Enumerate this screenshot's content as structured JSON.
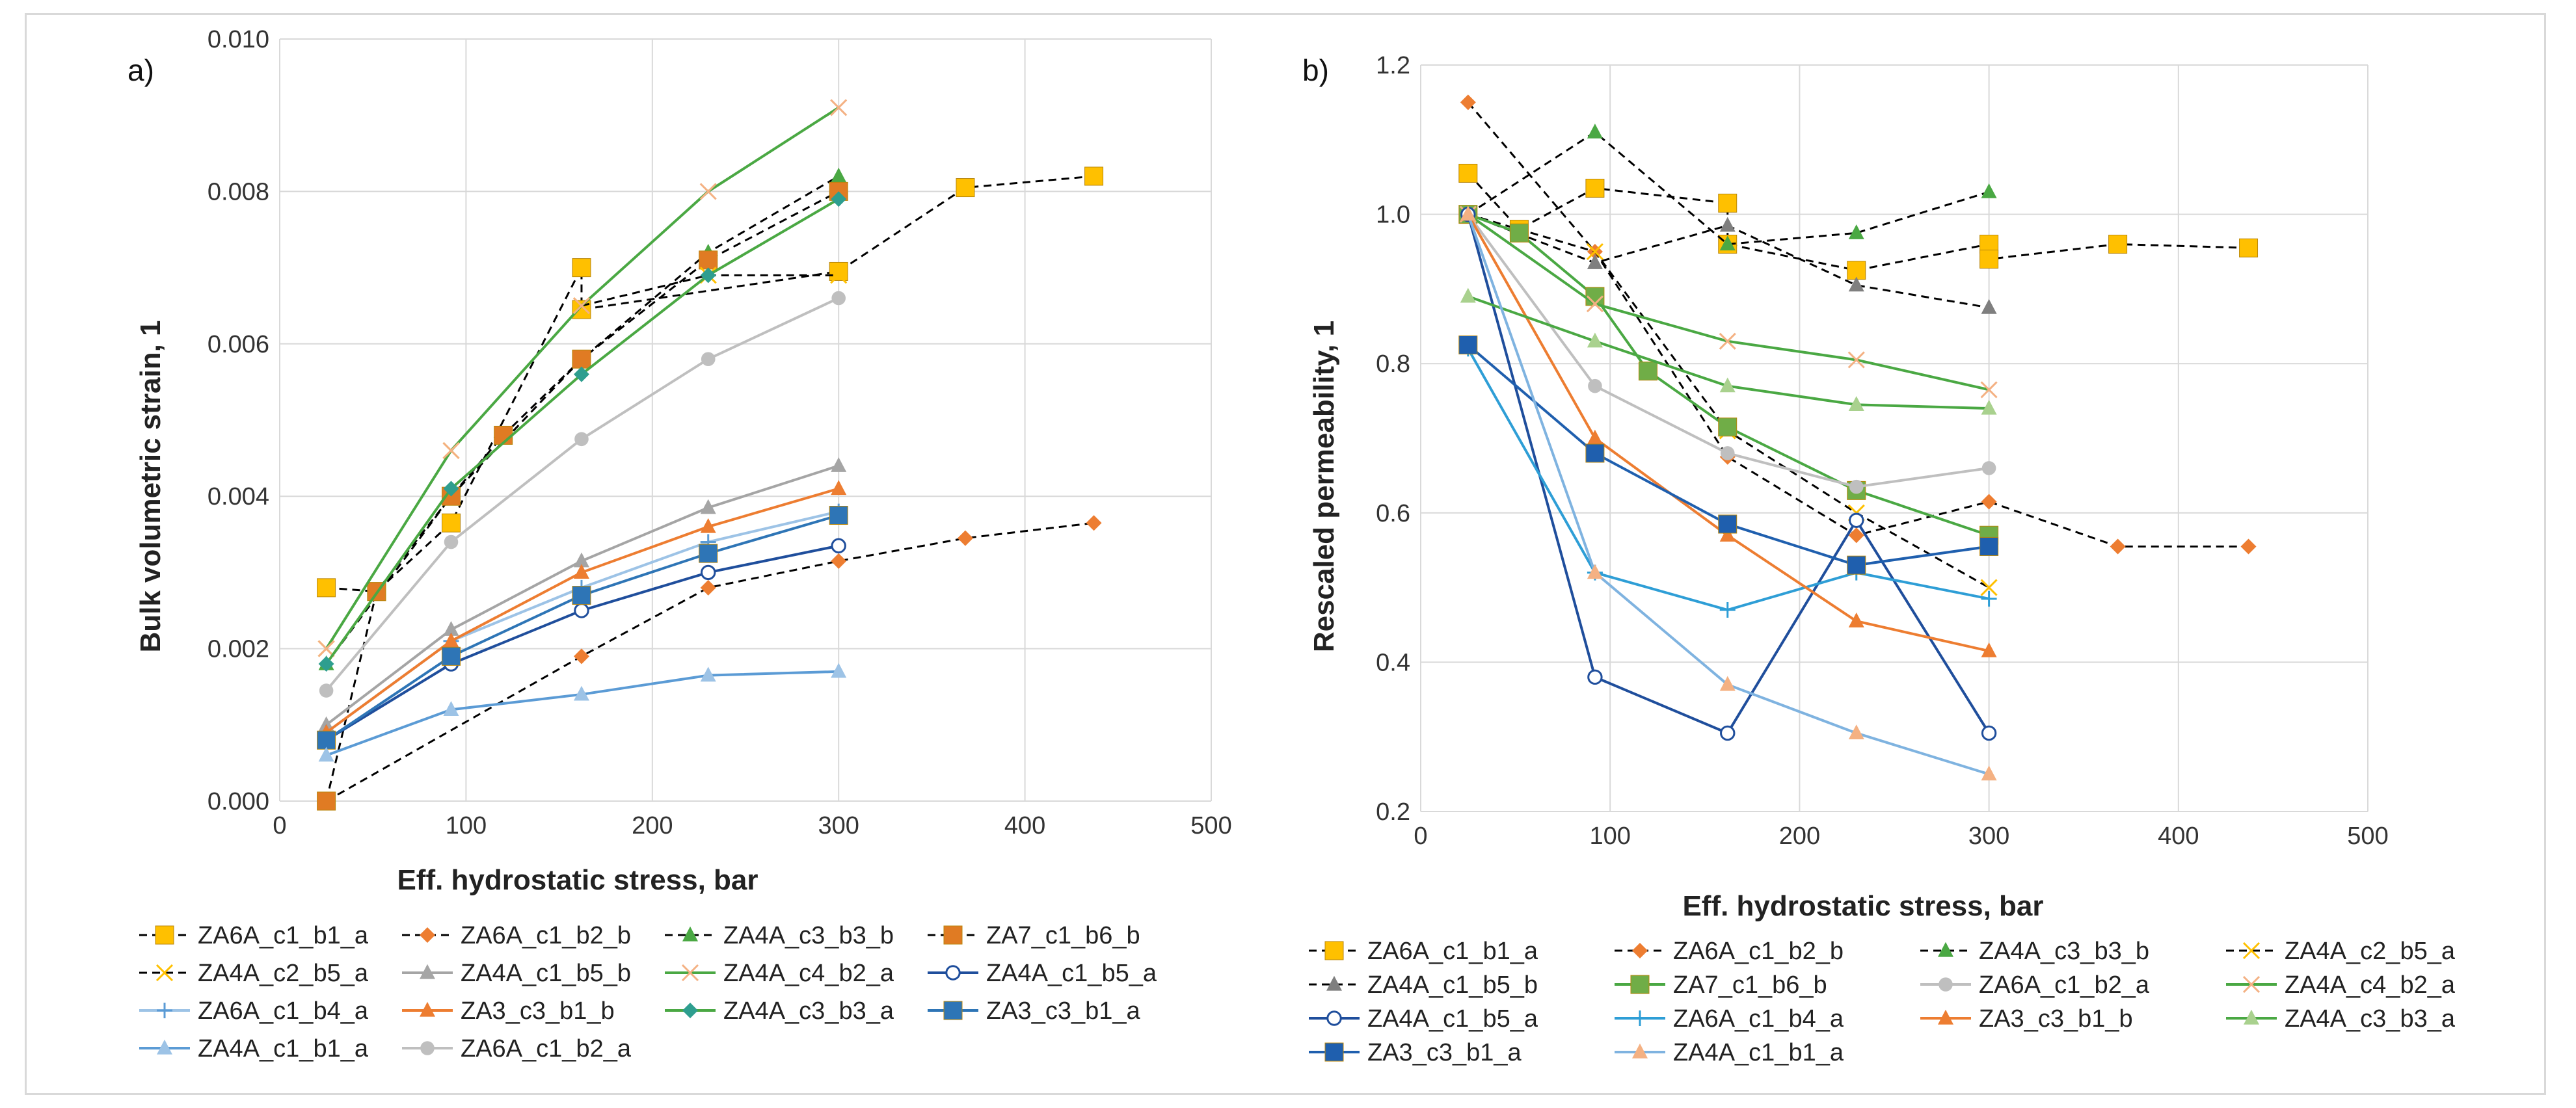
{
  "chart_data": [
    {
      "type": "line",
      "panel_label": "a)",
      "xlabel": "Eff. hydrostatic stress, bar",
      "ylabel": "Bulk volumetric strain, 1",
      "xlim": [
        0,
        500
      ],
      "ylim": [
        0,
        0.01
      ],
      "xticks": [
        "0",
        "100",
        "200",
        "300",
        "400",
        "500"
      ],
      "yticks": [
        "0.000",
        "0.002",
        "0.004",
        "0.006",
        "0.008",
        "0.010"
      ],
      "grid": true,
      "legend_position": "bottom",
      "series": [
        {
          "name": "ZA6A_c1_b1_a",
          "color": "#000000",
          "dash": true,
          "marker": "square",
          "marker_color": "#ffc000",
          "x": [
            25,
            52,
            92,
            162,
            162,
            300,
            368,
            437
          ],
          "y": [
            0.0028,
            0.00275,
            0.00365,
            0.007,
            0.00645,
            0.00695,
            0.00805,
            0.0082
          ]
        },
        {
          "name": "ZA6A_c1_b2_b",
          "color": "#000000",
          "dash": true,
          "marker": "diamond",
          "marker_color": "#ed7d31",
          "x": [
            25,
            162,
            230,
            300,
            368,
            437
          ],
          "y": [
            0.0,
            0.0019,
            0.0028,
            0.00315,
            0.00345,
            0.00365
          ]
        },
        {
          "name": "ZA4A_c3_b3_b",
          "color": "#000000",
          "dash": true,
          "marker": "triangle",
          "marker_color": "#4aa843",
          "x": [
            25,
            92,
            162,
            230,
            300
          ],
          "y": [
            0.0018,
            0.004,
            0.0058,
            0.0072,
            0.0082
          ]
        },
        {
          "name": "ZA7_c1_b6_b",
          "color": "#000000",
          "dash": true,
          "marker": "square",
          "marker_color": "#e07b23",
          "x": [
            25,
            52,
            92,
            120,
            162,
            230,
            300
          ],
          "y": [
            0.0,
            0.00275,
            0.004,
            0.0048,
            0.0058,
            0.0071,
            0.008
          ]
        },
        {
          "name": "ZA4A_c2_b5_a",
          "color": "#000000",
          "dash": true,
          "marker": "xcross",
          "marker_color": "#ffc000",
          "x": [
            25,
            92,
            162,
            230,
            300
          ],
          "y": [
            0.002,
            0.0046,
            0.0065,
            0.0069,
            0.0069
          ]
        },
        {
          "name": "ZA4A_c1_b5_b",
          "color": "#a5a5a5",
          "dash": false,
          "marker": "triangle",
          "marker_color": "#a5a5a5",
          "x": [
            25,
            92,
            162,
            230,
            300
          ],
          "y": [
            0.001,
            0.00225,
            0.00315,
            0.00385,
            0.0044
          ]
        },
        {
          "name": "ZA4A_c4_b2_a",
          "color": "#4aa843",
          "dash": false,
          "marker": "xcross",
          "marker_color": "#f4b183",
          "x": [
            25,
            92,
            162,
            230,
            300
          ],
          "y": [
            0.002,
            0.0046,
            0.0065,
            0.008,
            0.0091
          ]
        },
        {
          "name": "ZA4A_c1_b5_a",
          "color": "#1f4e9c",
          "dash": false,
          "marker": "circle-open",
          "marker_color": "#1f4e9c",
          "x": [
            25,
            92,
            162,
            230,
            300
          ],
          "y": [
            0.0008,
            0.0018,
            0.0025,
            0.003,
            0.00335
          ]
        },
        {
          "name": "ZA6A_c1_b4_a",
          "color": "#9dc3e6",
          "dash": false,
          "marker": "plus",
          "marker_color": "#5b9bd5",
          "x": [
            25,
            92,
            162,
            230,
            300
          ],
          "y": [
            0.0009,
            0.0021,
            0.0028,
            0.0034,
            0.0038
          ]
        },
        {
          "name": "ZA3_c3_b1_b",
          "color": "#ed7d31",
          "dash": false,
          "marker": "triangle",
          "marker_color": "#ed7d31",
          "x": [
            25,
            92,
            162,
            230,
            300
          ],
          "y": [
            0.0009,
            0.0021,
            0.003,
            0.0036,
            0.0041
          ]
        },
        {
          "name": "ZA4A_c3_b3_a",
          "color": "#4aa843",
          "dash": false,
          "marker": "diamond",
          "marker_color": "#2e9e8f",
          "x": [
            25,
            92,
            162,
            230,
            300
          ],
          "y": [
            0.0018,
            0.0041,
            0.0056,
            0.0069,
            0.0079
          ]
        },
        {
          "name": "ZA3_c3_b1_a",
          "color": "#2e75b6",
          "dash": false,
          "marker": "square",
          "marker_color": "#2e75b6",
          "x": [
            25,
            92,
            162,
            230,
            300
          ],
          "y": [
            0.0008,
            0.0019,
            0.0027,
            0.00325,
            0.00375
          ]
        },
        {
          "name": "ZA4A_c1_b1_a",
          "color": "#5b9bd5",
          "dash": false,
          "marker": "triangle",
          "marker_color": "#9dc3e6",
          "x": [
            25,
            92,
            162,
            230,
            300
          ],
          "y": [
            0.0006,
            0.0012,
            0.0014,
            0.00165,
            0.0017
          ]
        },
        {
          "name": "ZA6A_c1_b2_a",
          "color": "#bfbfbf",
          "dash": false,
          "marker": "circle",
          "marker_color": "#bfbfbf",
          "x": [
            25,
            92,
            162,
            230,
            300
          ],
          "y": [
            0.00145,
            0.0034,
            0.00475,
            0.0058,
            0.0066
          ]
        }
      ]
    },
    {
      "type": "line",
      "panel_label": "b)",
      "xlabel": "Eff. hydrostatic stress, bar",
      "ylabel": "Rescaled permeability, 1",
      "xlim": [
        0,
        500
      ],
      "ylim": [
        0.2,
        1.2
      ],
      "xticks": [
        "0",
        "100",
        "200",
        "300",
        "400",
        "500"
      ],
      "yticks": [
        "0.2",
        "0.4",
        "0.6",
        "0.8",
        "1.0",
        "1.2"
      ],
      "grid": true,
      "legend_position": "bottom",
      "series": [
        {
          "name": "ZA6A_c1_b1_a",
          "color": "#000000",
          "dash": true,
          "marker": "square",
          "marker_color": "#ffc000",
          "x": [
            25,
            52,
            92,
            162,
            162,
            230,
            300,
            300,
            368,
            437
          ],
          "y": [
            1.055,
            0.98,
            1.035,
            1.015,
            0.96,
            0.925,
            0.96,
            0.94,
            0.96,
            0.955
          ]
        },
        {
          "name": "ZA6A_c1_b2_b",
          "color": "#000000",
          "dash": true,
          "marker": "diamond",
          "marker_color": "#ed7d31",
          "x": [
            25,
            92,
            162,
            230,
            300,
            368,
            437
          ],
          "y": [
            1.15,
            0.95,
            0.675,
            0.57,
            0.615,
            0.555,
            0.555
          ]
        },
        {
          "name": "ZA4A_c3_b3_b",
          "color": "#000000",
          "dash": true,
          "marker": "triangle",
          "marker_color": "#4aa843",
          "x": [
            25,
            92,
            162,
            230,
            300
          ],
          "y": [
            1.0,
            1.11,
            0.96,
            0.975,
            1.03
          ]
        },
        {
          "name": "ZA4A_c2_b5_a",
          "color": "#000000",
          "dash": true,
          "marker": "xcross",
          "marker_color": "#ffc000",
          "x": [
            25,
            92,
            162,
            230,
            300
          ],
          "y": [
            1.0,
            0.95,
            0.71,
            0.6,
            0.5
          ]
        },
        {
          "name": "ZA4A_c1_b5_b",
          "color": "#000000",
          "dash": true,
          "marker": "triangle",
          "marker_color": "#7f7f7f",
          "x": [
            25,
            92,
            162,
            230,
            300
          ],
          "y": [
            1.0,
            0.935,
            0.985,
            0.905,
            0.875
          ]
        },
        {
          "name": "ZA7_c1_b6_b",
          "color": "#4aa843",
          "dash": false,
          "marker": "square",
          "marker_color": "#70ad47",
          "x": [
            25,
            52,
            92,
            120,
            162,
            230,
            300
          ],
          "y": [
            1.0,
            0.975,
            0.89,
            0.79,
            0.715,
            0.63,
            0.57
          ]
        },
        {
          "name": "ZA6A_c1_b2_a",
          "color": "#bfbfbf",
          "dash": false,
          "marker": "circle",
          "marker_color": "#bfbfbf",
          "x": [
            25,
            92,
            162,
            230,
            300
          ],
          "y": [
            1.0,
            0.77,
            0.68,
            0.635,
            0.66
          ]
        },
        {
          "name": "ZA4A_c4_b2_a",
          "color": "#4aa843",
          "dash": false,
          "marker": "xcross",
          "marker_color": "#f4b183",
          "x": [
            25,
            92,
            162,
            230,
            300
          ],
          "y": [
            1.0,
            0.88,
            0.83,
            0.805,
            0.765
          ]
        },
        {
          "name": "ZA4A_c1_b5_a",
          "color": "#1f4e9c",
          "dash": false,
          "marker": "circle-open",
          "marker_color": "#1f4e9c",
          "x": [
            25,
            92,
            162,
            230,
            300
          ],
          "y": [
            1.0,
            0.38,
            0.305,
            0.59,
            0.305
          ]
        },
        {
          "name": "ZA6A_c1_b4_a",
          "color": "#2e9ed6",
          "dash": false,
          "marker": "plus",
          "marker_color": "#2e9ed6",
          "x": [
            25,
            92,
            162,
            230,
            300
          ],
          "y": [
            0.82,
            0.52,
            0.47,
            0.52,
            0.485
          ]
        },
        {
          "name": "ZA3_c3_b1_b",
          "color": "#ed7d31",
          "dash": false,
          "marker": "triangle",
          "marker_color": "#ed7d31",
          "x": [
            25,
            92,
            162,
            230,
            300
          ],
          "y": [
            1.0,
            0.7,
            0.57,
            0.455,
            0.415
          ]
        },
        {
          "name": "ZA4A_c3_b3_a",
          "color": "#4aa843",
          "dash": false,
          "marker": "triangle",
          "marker_color": "#a9d18e",
          "x": [
            25,
            92,
            162,
            230,
            300
          ],
          "y": [
            0.89,
            0.83,
            0.77,
            0.745,
            0.74
          ]
        },
        {
          "name": "ZA3_c3_b1_a",
          "color": "#1f5fae",
          "dash": false,
          "marker": "square",
          "marker_color": "#1f5fae",
          "x": [
            25,
            92,
            162,
            230,
            300
          ],
          "y": [
            0.825,
            0.68,
            0.585,
            0.53,
            0.555
          ]
        },
        {
          "name": "ZA4A_c1_b1_a",
          "color": "#7fb3e0",
          "dash": false,
          "marker": "triangle",
          "marker_color": "#f4b183",
          "x": [
            25,
            92,
            162,
            230,
            300
          ],
          "y": [
            1.0,
            0.52,
            0.37,
            0.305,
            0.25
          ]
        }
      ]
    }
  ]
}
